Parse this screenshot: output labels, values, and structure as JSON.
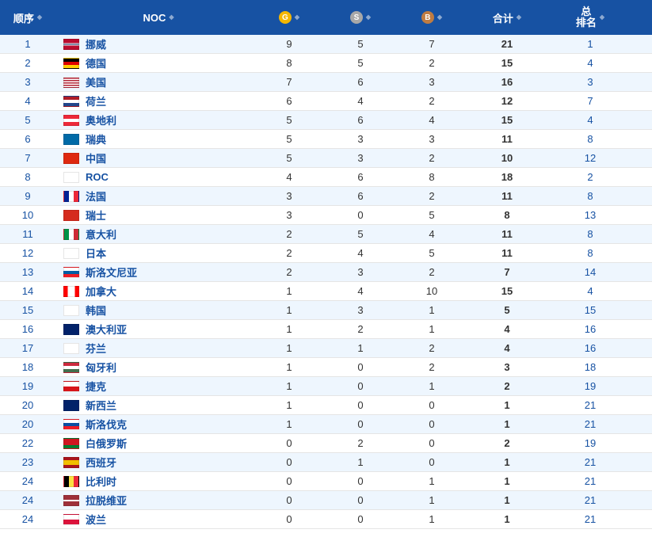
{
  "header": {
    "rank": "顺序",
    "noc": "NOC",
    "gold": "G",
    "silver": "S",
    "bronze": "B",
    "total": "合计",
    "totalRankLine1": "总",
    "totalRankLine2": "排名"
  },
  "flagStyles": {
    "NOR": "background:linear-gradient(to bottom,#ba0c2f 38%,#fff 38%,#fff 44%,#00205b 44%,#00205b 56%,#fff 56%,#fff 62%,#ba0c2f 62%);position:relative;",
    "GER": "background:linear-gradient(to bottom,#000 33%,#dd0000 33%,#dd0000 66%,#ffce00 66%)",
    "USA": "background:repeating-linear-gradient(to bottom,#b22234 0,#b22234 1.5px,#fff 1.5px,#fff 3px);position:relative;",
    "NED": "background:linear-gradient(to bottom,#ae1c28 33%,#fff 33%,#fff 66%,#21468b 66%)",
    "AUT": "background:linear-gradient(to bottom,#ed2939 33%,#fff 33%,#fff 66%,#ed2939 66%)",
    "SWE": "background:#006aa7;position:relative;",
    "CHN": "background:#de2910",
    "ROC": "background:#fff",
    "FRA": "background:linear-gradient(to right,#002395 33%,#fff 33%,#fff 66%,#ed2939 66%)",
    "SUI": "background:#d52b1e;position:relative;",
    "ITA": "background:linear-gradient(to right,#009246 33%,#fff 33%,#fff 66%,#ce2b37 66%)",
    "JPN": "background:#fff;position:relative;",
    "SLO": "background:linear-gradient(to bottom,#fff 33%,#005da4 33%,#005da4 66%,#ed1c24 66%)",
    "CAN": "background:linear-gradient(to right,#ff0000 25%,#fff 25%,#fff 75%,#ff0000 75%);position:relative;",
    "KOR": "background:#fff;position:relative;",
    "AUS": "background:#012169",
    "FIN": "background:#fff;position:relative;",
    "HUN": "background:linear-gradient(to bottom,#cd2a3e 33%,#fff 33%,#fff 66%,#436f4d 66%)",
    "CZE": "background:linear-gradient(to bottom,#fff 50%,#d7141a 50%);position:relative;",
    "NZL": "background:#012169",
    "SVK": "background:linear-gradient(to bottom,#fff 33%,#0b4ea2 33%,#0b4ea2 66%,#ee1c25 66%)",
    "BLR": "background:linear-gradient(to bottom,#ce1720 66%,#007c30 66%)",
    "ESP": "background:linear-gradient(to bottom,#aa151b 25%,#f1bf00 25%,#f1bf00 75%,#aa151b 75%)",
    "BEL": "background:linear-gradient(to right,#000 33%,#fae042 33%,#fae042 66%,#ed2939 66%)",
    "LAT": "background:linear-gradient(to bottom,#9e3039 40%,#fff 40%,#fff 60%,#9e3039 60%)",
    "POL": "background:linear-gradient(to bottom,#fff 50%,#dc143c 50%)"
  },
  "rows": [
    {
      "rank": 1,
      "code": "NOR",
      "name": "挪威",
      "g": 9,
      "s": 5,
      "b": 7,
      "total": 21,
      "totalRank": 1
    },
    {
      "rank": 2,
      "code": "GER",
      "name": "德国",
      "g": 8,
      "s": 5,
      "b": 2,
      "total": 15,
      "totalRank": 4
    },
    {
      "rank": 3,
      "code": "USA",
      "name": "美国",
      "g": 7,
      "s": 6,
      "b": 3,
      "total": 16,
      "totalRank": 3
    },
    {
      "rank": 4,
      "code": "NED",
      "name": "荷兰",
      "g": 6,
      "s": 4,
      "b": 2,
      "total": 12,
      "totalRank": 7
    },
    {
      "rank": 5,
      "code": "AUT",
      "name": "奥地利",
      "g": 5,
      "s": 6,
      "b": 4,
      "total": 15,
      "totalRank": 4
    },
    {
      "rank": 6,
      "code": "SWE",
      "name": "瑞典",
      "g": 5,
      "s": 3,
      "b": 3,
      "total": 11,
      "totalRank": 8
    },
    {
      "rank": 7,
      "code": "CHN",
      "name": "中国",
      "g": 5,
      "s": 3,
      "b": 2,
      "total": 10,
      "totalRank": 12
    },
    {
      "rank": 8,
      "code": "ROC",
      "name": "ROC",
      "g": 4,
      "s": 6,
      "b": 8,
      "total": 18,
      "totalRank": 2
    },
    {
      "rank": 9,
      "code": "FRA",
      "name": "法国",
      "g": 3,
      "s": 6,
      "b": 2,
      "total": 11,
      "totalRank": 8
    },
    {
      "rank": 10,
      "code": "SUI",
      "name": "瑞士",
      "g": 3,
      "s": 0,
      "b": 5,
      "total": 8,
      "totalRank": 13
    },
    {
      "rank": 11,
      "code": "ITA",
      "name": "意大利",
      "g": 2,
      "s": 5,
      "b": 4,
      "total": 11,
      "totalRank": 8
    },
    {
      "rank": 12,
      "code": "JPN",
      "name": "日本",
      "g": 2,
      "s": 4,
      "b": 5,
      "total": 11,
      "totalRank": 8
    },
    {
      "rank": 13,
      "code": "SLO",
      "name": "斯洛文尼亚",
      "g": 2,
      "s": 3,
      "b": 2,
      "total": 7,
      "totalRank": 14
    },
    {
      "rank": 14,
      "code": "CAN",
      "name": "加拿大",
      "g": 1,
      "s": 4,
      "b": 10,
      "total": 15,
      "totalRank": 4
    },
    {
      "rank": 15,
      "code": "KOR",
      "name": "韩国",
      "g": 1,
      "s": 3,
      "b": 1,
      "total": 5,
      "totalRank": 15
    },
    {
      "rank": 16,
      "code": "AUS",
      "name": "澳大利亚",
      "g": 1,
      "s": 2,
      "b": 1,
      "total": 4,
      "totalRank": 16
    },
    {
      "rank": 17,
      "code": "FIN",
      "name": "芬兰",
      "g": 1,
      "s": 1,
      "b": 2,
      "total": 4,
      "totalRank": 16
    },
    {
      "rank": 18,
      "code": "HUN",
      "name": "匈牙利",
      "g": 1,
      "s": 0,
      "b": 2,
      "total": 3,
      "totalRank": 18
    },
    {
      "rank": 19,
      "code": "CZE",
      "name": "捷克",
      "g": 1,
      "s": 0,
      "b": 1,
      "total": 2,
      "totalRank": 19
    },
    {
      "rank": 20,
      "code": "NZL",
      "name": "新西兰",
      "g": 1,
      "s": 0,
      "b": 0,
      "total": 1,
      "totalRank": 21
    },
    {
      "rank": 20,
      "code": "SVK",
      "name": "斯洛伐克",
      "g": 1,
      "s": 0,
      "b": 0,
      "total": 1,
      "totalRank": 21
    },
    {
      "rank": 22,
      "code": "BLR",
      "name": "白俄罗斯",
      "g": 0,
      "s": 2,
      "b": 0,
      "total": 2,
      "totalRank": 19
    },
    {
      "rank": 23,
      "code": "ESP",
      "name": "西班牙",
      "g": 0,
      "s": 1,
      "b": 0,
      "total": 1,
      "totalRank": 21
    },
    {
      "rank": 24,
      "code": "BEL",
      "name": "比利时",
      "g": 0,
      "s": 0,
      "b": 1,
      "total": 1,
      "totalRank": 21
    },
    {
      "rank": 24,
      "code": "LAT",
      "name": "拉脱维亚",
      "g": 0,
      "s": 0,
      "b": 1,
      "total": 1,
      "totalRank": 21
    },
    {
      "rank": 24,
      "code": "POL",
      "name": "波兰",
      "g": 0,
      "s": 0,
      "b": 1,
      "total": 1,
      "totalRank": 21
    }
  ]
}
